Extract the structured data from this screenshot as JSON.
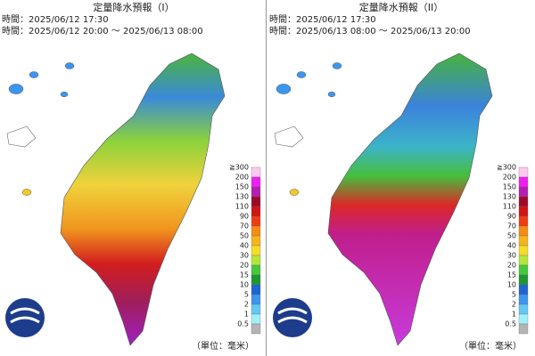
{
  "panels": [
    {
      "title": "定量降水預報（I）",
      "issued": "時間：2025/06/12 17:30",
      "valid": "時間：2025/06/12 20:00 ～ 2025/06/13 08:00"
    },
    {
      "title": "定量降水預報（II）",
      "issued": "時間：2025/06/12 17:30",
      "valid": "時間：2025/06/13 08:00 ～ 2025/06/13 20:00"
    }
  ],
  "legend": [
    {
      "label": "≧300",
      "color": "#ffc8ee"
    },
    {
      "label": "200",
      "color": "#f01ef0"
    },
    {
      "label": "150",
      "color": "#b41eb4"
    },
    {
      "label": "130",
      "color": "#a00a28"
    },
    {
      "label": "110",
      "color": "#d21414"
    },
    {
      "label": "90",
      "color": "#f03c14"
    },
    {
      "label": "70",
      "color": "#f58c14"
    },
    {
      "label": "50",
      "color": "#f5b41e"
    },
    {
      "label": "40",
      "color": "#f5dc28"
    },
    {
      "label": "30",
      "color": "#b4e63c"
    },
    {
      "label": "20",
      "color": "#46c83c"
    },
    {
      "label": "15",
      "color": "#1e9632"
    },
    {
      "label": "10",
      "color": "#1e64d2"
    },
    {
      "label": "5",
      "color": "#3c96f0"
    },
    {
      "label": "2",
      "color": "#64c8f5"
    },
    {
      "label": "1",
      "color": "#a0f0fa"
    },
    {
      "label": "0.5",
      "color": "#b4b4b4"
    }
  ],
  "unit": "（單位：毫米）"
}
